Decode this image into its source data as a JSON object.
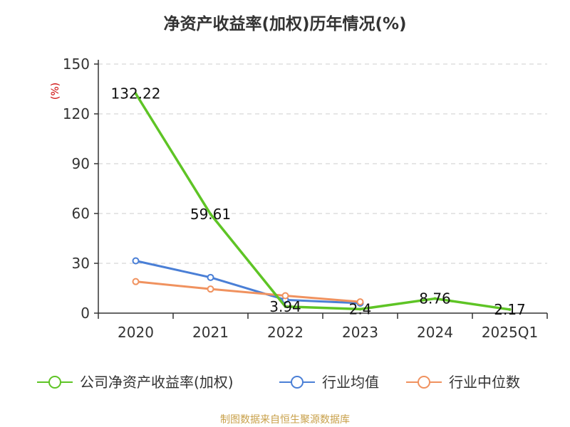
{
  "title": "净资产收益率(加权)历年情况(%)",
  "source": "制图数据来自恒生聚源数据库",
  "chart_data": {
    "type": "line",
    "title": "净资产收益率(加权)历年情况(%)",
    "y_unit": "(%)",
    "categories": [
      "2020",
      "2021",
      "2022",
      "2023",
      "2024",
      "2025Q1"
    ],
    "ylim": [
      0,
      150
    ],
    "yticks": [
      0,
      30,
      60,
      90,
      120,
      150
    ],
    "grid": true,
    "legend_position": "bottom",
    "series": [
      {
        "name": "公司净资产收益率(加权)",
        "color": "#5ec425",
        "values": [
          132.22,
          59.61,
          3.94,
          2.4,
          8.76,
          2.17
        ],
        "labels": [
          "132.22",
          "59.61",
          "3.94",
          "2.4",
          "8.76",
          "2.17"
        ]
      },
      {
        "name": "行业均值",
        "color": "#4a7fd6",
        "values": [
          31.5,
          21.5,
          8.0,
          6.0,
          null,
          null
        ]
      },
      {
        "name": "行业中位数",
        "color": "#f0925f",
        "values": [
          19.0,
          14.5,
          10.5,
          6.8,
          null,
          null
        ]
      }
    ]
  }
}
